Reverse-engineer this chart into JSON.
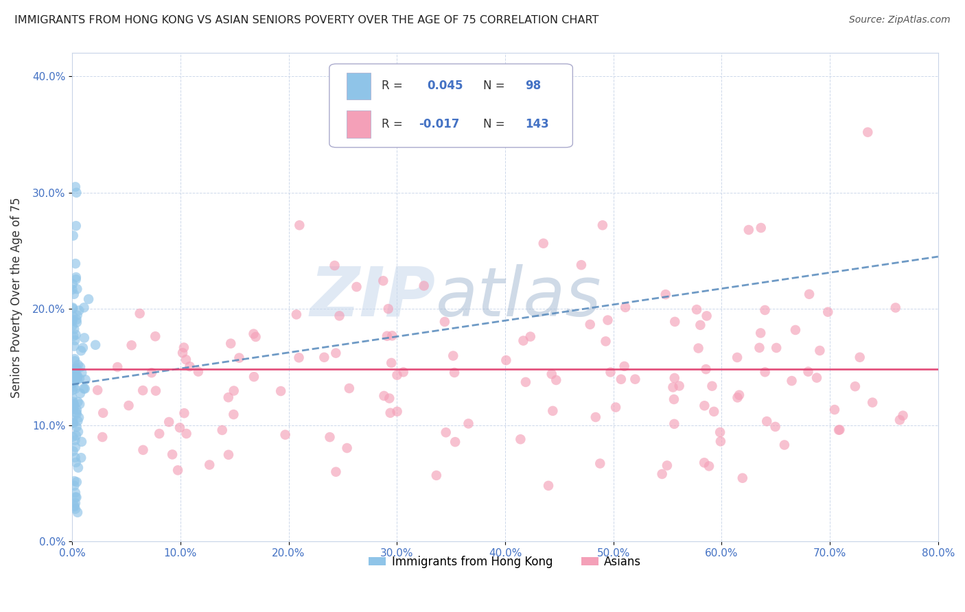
{
  "title": "IMMIGRANTS FROM HONG KONG VS ASIAN SENIORS POVERTY OVER THE AGE OF 75 CORRELATION CHART",
  "source": "Source: ZipAtlas.com",
  "ylabel": "Seniors Poverty Over the Age of 75",
  "xlim": [
    0,
    0.8
  ],
  "ylim": [
    0,
    0.42
  ],
  "legend1_label": "Immigrants from Hong Kong",
  "legend2_label": "Asians",
  "R1": 0.045,
  "N1": 98,
  "R2": -0.017,
  "N2": 143,
  "color_blue": "#8fc4e8",
  "color_pink": "#f4a0b8",
  "color_blue_line": "#5588bb",
  "color_pink_line": "#e04070",
  "watermark": "ZIPAtlas",
  "watermark_color_zip": "#c5d8ee",
  "watermark_color_atlas": "#a0b8cc",
  "blue_line_y0": 0.135,
  "blue_line_y1": 0.245,
  "pink_line_y0": 0.148,
  "pink_line_y1": 0.148
}
